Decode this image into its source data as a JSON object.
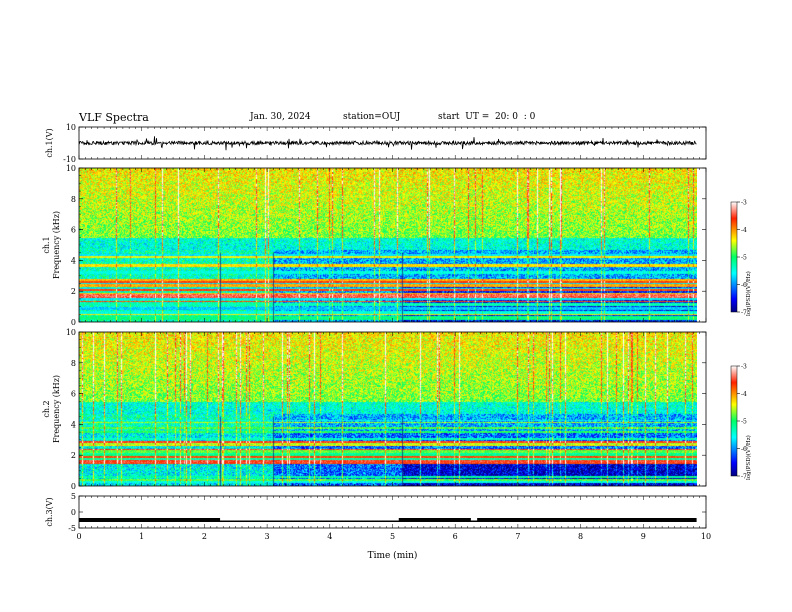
{
  "header": {
    "title": "VLF Spectra",
    "date": "Jan. 30, 2024",
    "station": "station=OUJ",
    "start": "start  UT =  20: 0  : 0"
  },
  "chart_data": [
    {
      "type": "line",
      "panel": "ch1-waveform",
      "ylabel": "ch.1(V)",
      "ylim": [
        -10,
        10
      ],
      "yticks": [
        "10",
        "-10"
      ],
      "baseline": 0,
      "xlim": [
        0,
        10
      ]
    },
    {
      "type": "heatmap",
      "panel": "ch1-spectrogram",
      "ylabel": "ch.1\nFrequency (kHz)",
      "ylim": [
        0,
        10
      ],
      "yticks": [
        "0",
        "2",
        "4",
        "6",
        "8",
        "10"
      ],
      "xlim": [
        0,
        10
      ],
      "data_end_min": 9.85,
      "colorbar": {
        "label": "log(PSD)(V²/Hz)",
        "ticks": [
          "-3",
          "-4",
          "-5",
          "-6",
          "-7"
        ],
        "range": [
          -7,
          -3
        ]
      }
    },
    {
      "type": "heatmap",
      "panel": "ch2-spectrogram",
      "ylabel": "ch.2\nFrequency (kHz)",
      "ylim": [
        0,
        10
      ],
      "yticks": [
        "0",
        "2",
        "4",
        "6",
        "8",
        "10"
      ],
      "xlim": [
        0,
        10
      ],
      "data_end_min": 9.85,
      "colorbar": {
        "label": "log(PSD)(V²/Hz)",
        "ticks": [
          "-3",
          "-4",
          "-5",
          "-6",
          "-7"
        ],
        "range": [
          -7,
          -3
        ]
      }
    },
    {
      "type": "line",
      "panel": "ch3-waveform",
      "ylabel": "ch.3(V)",
      "ylim": [
        -5,
        5
      ],
      "yticks": [
        "5",
        "0",
        "-5"
      ],
      "level": -2.5,
      "dips": [
        [
          2.25,
          5.1
        ],
        [
          6.25,
          6.35
        ]
      ],
      "xlim": [
        0,
        10
      ],
      "xticks": [
        "0",
        "1",
        "2",
        "3",
        "4",
        "5",
        "6",
        "7",
        "8",
        "9",
        "10"
      ],
      "xlabel": "Time (min)"
    }
  ]
}
